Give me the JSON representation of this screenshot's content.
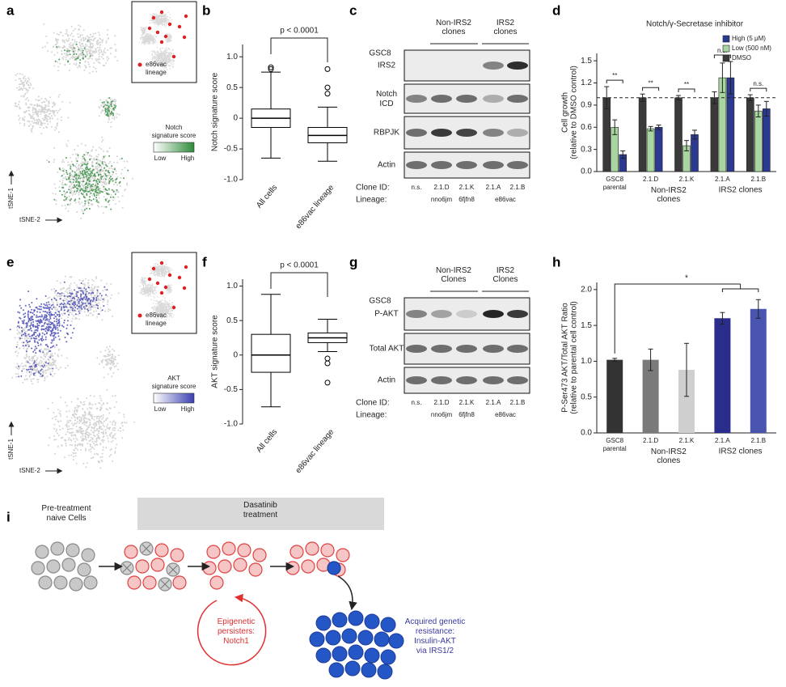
{
  "panel_labels": [
    "a",
    "b",
    "c",
    "d",
    "e",
    "f",
    "g",
    "h",
    "i"
  ],
  "tsne": [
    {
      "axis_y": "tSNE-1",
      "axis_x": "tSNE-2",
      "inset_legend": "e86vac\nlineage",
      "legend_title": "Notch\nsignature score",
      "legend_low": "Low",
      "legend_high": "High",
      "color": "#2e8b3a"
    },
    {
      "axis_y": "tSNE-1",
      "axis_x": "tSNE-2",
      "inset_legend": "e86vac\nlineage",
      "legend_title": "AKT\nsignature score",
      "legend_low": "Low",
      "legend_high": "High",
      "color": "#3b3fb0"
    }
  ],
  "blots": [
    {
      "cell_line": "GSC8",
      "groups": [
        "Non-IRS2\nclones",
        "IRS2\nclones"
      ],
      "rows": [
        "IRS2",
        "Notch\nICD",
        "RBPJK",
        "Actin"
      ],
      "clone_id_label": "Clone ID:",
      "clone_ids": [
        "n.s.",
        "2.1.D",
        "2.1.K",
        "2.1.A",
        "2.1.B"
      ],
      "lineage_label": "Lineage:",
      "lineages": [
        "nno6jm",
        "6fjfn8",
        "e86vac"
      ]
    },
    {
      "cell_line": "GSC8",
      "groups": [
        "Non-IRS2\nClones",
        "IRS2\nClones"
      ],
      "rows": [
        "P-AKT",
        "Total AKT",
        "Actin"
      ],
      "clone_id_label": "Clone ID:",
      "clone_ids": [
        "n.s.",
        "2.1.D",
        "2.1.K",
        "2.1.A",
        "2.1.B"
      ],
      "lineage_label": "Lineage:",
      "lineages": [
        "nno6jm",
        "6fjfn8",
        "e86vac"
      ]
    }
  ],
  "chart_data": [
    {
      "type": "box",
      "ylabel": "Notch signature score",
      "ylim": [
        -1,
        1.2
      ],
      "yticks": [
        {
          "value": -1,
          "label": "-1.0"
        },
        -0.5,
        0,
        0.5,
        {
          "value": 1,
          "label": "1.0"
        }
      ],
      "categories": [
        "All cells",
        "e86vac lineage"
      ],
      "annotation": "p < 0.0001",
      "color": "#000000",
      "boxes": [
        {
          "low": -0.65,
          "q1": -0.15,
          "median": 0,
          "q3": 0.15,
          "high": 0.75,
          "outliers": [
            0.8,
            0.83
          ]
        },
        {
          "low": -0.7,
          "q1": -0.4,
          "median": -0.28,
          "q3": -0.15,
          "high": 0.18,
          "outliers": [
            0.4,
            0.5,
            0.8
          ]
        }
      ]
    },
    {
      "type": "grouped_bar",
      "title": "Notch/γ-Secretase inhibitor",
      "ylabel": "Cell growth\n(relative to DMSO control)",
      "ylim": [
        0,
        1.6
      ],
      "yticks": [
        {
          "value": 0,
          "label": "0.0"
        },
        0.3,
        0.6,
        0.9,
        1.2,
        1.5
      ],
      "categories": [
        "GSC8\nparental",
        "2.1.D",
        "2.1.K",
        "2.1.A",
        "2.1.B"
      ],
      "groups": [
        "Non-IRS2\nclones",
        "IRS2 clones"
      ],
      "reference_line": 1,
      "legend": "top-right",
      "annotations": [
        "**",
        "**",
        "**",
        "n.s.",
        "n.s."
      ],
      "series": [
        {
          "name": "High (5 μM)",
          "color": "#2b3990",
          "values": [
            0.23,
            0.6,
            0.5,
            1.27,
            0.85
          ],
          "errors": [
            0.05,
            0.03,
            0.06,
            0.22,
            0.1
          ]
        },
        {
          "name": "Low (500 nM)",
          "color": "#a8d5a0",
          "values": [
            0.6,
            0.58,
            0.35,
            1.27,
            0.82
          ],
          "errors": [
            0.1,
            0.03,
            0.07,
            0.2,
            0.08
          ]
        },
        {
          "name": "DMSO",
          "color": "#3a3a3a",
          "values": [
            1,
            1,
            1,
            1,
            1
          ],
          "errors": [
            0.15,
            0.05,
            0.03,
            0.08,
            0.04
          ]
        }
      ]
    },
    {
      "type": "box",
      "ylabel": "AKT signature score",
      "ylim": [
        -1,
        1.1
      ],
      "yticks": [
        {
          "value": -1,
          "label": "-1.0"
        },
        -0.5,
        0,
        0.5,
        {
          "value": 1,
          "label": "1.0"
        }
      ],
      "categories": [
        "All cells",
        "e86vac lineage"
      ],
      "annotation": "p < 0.0001",
      "color": "#000000",
      "boxes": [
        {
          "low": -0.75,
          "q1": -0.25,
          "median": 0,
          "q3": 0.3,
          "high": 0.88,
          "outliers": []
        },
        {
          "low": 0.05,
          "q1": 0.18,
          "median": 0.25,
          "q3": 0.32,
          "high": 0.52,
          "outliers": [
            -0.05,
            -0.12,
            -0.4
          ]
        }
      ]
    },
    {
      "type": "bar",
      "ylabel": "P-Ser473 AKT/Total AKT Ratio\n(relative to parental cell control)",
      "ylim": [
        0,
        2.1
      ],
      "yticks": [
        {
          "value": 0,
          "label": "0.0"
        },
        0.5,
        {
          "value": 1,
          "label": "1.0"
        },
        1.5,
        {
          "value": 2,
          "label": "2.0"
        }
      ],
      "categories": [
        "GSC8\nparental",
        "2.1.D",
        "2.1.K",
        "2.1.A",
        "2.1.B"
      ],
      "groups": [
        "Non-IRS2\nclones",
        "IRS2 clones"
      ],
      "values": [
        1.02,
        1.02,
        0.88,
        1.6,
        1.73
      ],
      "errors": [
        0.02,
        0.15,
        0.37,
        0.08,
        0.13
      ],
      "colors": [
        "#333333",
        "#7a7a7a",
        "#cfcfcf",
        "#2b2d8c",
        "#4a55b0"
      ],
      "annotation": "*"
    }
  ],
  "diagram": {
    "pre_treatment": "Pre-treatment\nnaive Cells",
    "treatment": "Dasatinib\ntreatment",
    "persisters": "Epigenetic\npersisters:\nNotch1",
    "resistance": "Acquired genetic\nresistance:\nInsulin-AKT\nvia IRS1/2"
  }
}
